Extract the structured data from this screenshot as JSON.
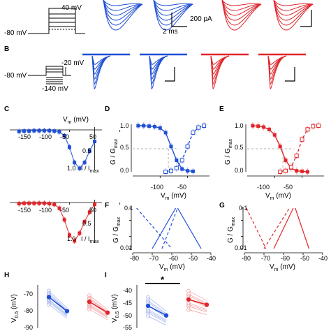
{
  "panel_labels": [
    "B",
    "C",
    "D",
    "E",
    "F",
    "G",
    "H",
    "I"
  ],
  "protocol_a": {
    "v_hold": "-80 mV",
    "v_step": "40 mV"
  },
  "protocol_b": {
    "v_hold": "-80 mV",
    "v_test": "-20 mV",
    "v_pre": "-140 mV"
  },
  "scalebar_a": {
    "current": "200 pA",
    "time": "2 ms"
  },
  "colors": {
    "control": "#1f4fd6",
    "treatment": "#e0262b",
    "light_control": "#a9b8f0",
    "light_treatment": "#f3a9a9"
  },
  "axes": {
    "iv_x_ticks": [
      "-150",
      "-100",
      "-50",
      "50"
    ],
    "iv_x_label": "V",
    "iv_x_label_sub": "m",
    "iv_x_label_unit": " (mV)",
    "iv_y_label": "I / I",
    "iv_y_label_sub": "max",
    "iv_y_ticks": [
      "0.5",
      "1.0"
    ],
    "g_y_label": "G / G",
    "g_y_label_sub": "max",
    "g_y_ticks": [
      "1.0",
      "0.5",
      "0.0"
    ],
    "g_x_ticks": [
      "-100",
      "-50"
    ],
    "log_y_ticks": [
      "0.1",
      "0.01"
    ],
    "log_x_ticks": [
      "-80",
      "-70",
      "-60",
      "-50",
      "-40"
    ],
    "vm_label": "V",
    "vm_label_sub": "m",
    "vm_label_unit": " (mV)",
    "v05_label": "V",
    "v05_label_sub": "0.5",
    "v05_label_unit": " (mV)",
    "h_y_ticks": [
      "-70",
      "-80",
      "-90"
    ],
    "i_y_ticks": [
      "-40",
      "-45",
      "-50",
      "-55"
    ],
    "significance": "*"
  },
  "chart_data": [
    {
      "type": "scatter",
      "panel": "C-top",
      "xlabel": "Vm (mV)",
      "ylabel": "I / Imax",
      "series": [
        {
          "color": "#1f4fd6",
          "x": [
            -150,
            -140,
            -130,
            -120,
            -110,
            -100,
            -90,
            -80,
            -70,
            -60,
            -50,
            -40,
            -30,
            -20,
            -10,
            0
          ],
          "y": [
            -0.04,
            -0.03,
            -0.03,
            -0.02,
            -0.02,
            -0.02,
            -0.02,
            -0.03,
            -0.05,
            -0.15,
            -0.45,
            -0.85,
            -1.0,
            -0.85,
            -0.55,
            -0.3
          ]
        }
      ]
    },
    {
      "type": "scatter",
      "panel": "C-bottom",
      "xlabel": "",
      "ylabel": "I / Imax",
      "series": [
        {
          "color": "#e0262b",
          "x": [
            -150,
            -140,
            -130,
            -120,
            -110,
            -100,
            -90,
            -80,
            -70,
            -60,
            -50,
            -40,
            -30,
            -20,
            -10,
            0
          ],
          "y": [
            -0.03,
            -0.02,
            -0.02,
            -0.02,
            -0.02,
            -0.02,
            -0.03,
            -0.05,
            -0.15,
            -0.45,
            -0.85,
            -1.0,
            -0.8,
            -0.5,
            -0.25,
            -0.05
          ]
        }
      ]
    },
    {
      "type": "line",
      "panel": "D",
      "xlabel": "Vm (mV)",
      "ylabel": "G / Gmax",
      "ylim": [
        0,
        1
      ],
      "series": [
        {
          "style": "solid",
          "color": "#1f4fd6",
          "x": [
            -140,
            -130,
            -120,
            -110,
            -100,
            -90,
            -80,
            -70,
            -60,
            -50,
            -40
          ],
          "y": [
            1.0,
            1.0,
            0.99,
            0.98,
            0.95,
            0.85,
            0.55,
            0.25,
            0.06,
            0.02,
            0.01
          ]
        },
        {
          "style": "dashed",
          "color": "#1f4fd6",
          "x": [
            -90,
            -80,
            -70,
            -60,
            -50,
            -40,
            -30,
            -20
          ],
          "y": [
            0.0,
            0.02,
            0.08,
            0.25,
            0.55,
            0.85,
            0.96,
            1.0
          ]
        }
      ]
    },
    {
      "type": "line",
      "panel": "E",
      "xlabel": "Vm (mV)",
      "ylabel": "G / Gmax",
      "ylim": [
        0,
        1
      ],
      "series": [
        {
          "style": "solid",
          "color": "#e0262b",
          "x": [
            -140,
            -130,
            -120,
            -110,
            -100,
            -90,
            -80,
            -70,
            -60,
            -50,
            -40
          ],
          "y": [
            1.0,
            0.99,
            0.97,
            0.92,
            0.8,
            0.55,
            0.25,
            0.08,
            0.02,
            0.01,
            0.0
          ]
        },
        {
          "style": "dashed",
          "color": "#e0262b",
          "x": [
            -90,
            -80,
            -70,
            -60,
            -50,
            -40,
            -30,
            -20
          ],
          "y": [
            0.0,
            0.02,
            0.1,
            0.35,
            0.7,
            0.92,
            0.99,
            1.0
          ]
        }
      ]
    },
    {
      "type": "line",
      "panel": "F",
      "xlabel": "Vm (mV)",
      "ylabel": "G / Gmax",
      "xlim": [
        -80,
        -40
      ],
      "series": [
        {
          "style": "dashed",
          "color": "#1f4fd6",
          "x": [
            -78,
            -60
          ],
          "y": [
            0.1,
            0.01
          ]
        },
        {
          "style": "dashed",
          "color": "#1f4fd6",
          "x": [
            -65,
            -57
          ],
          "y": [
            0.01,
            0.1
          ]
        },
        {
          "style": "solid",
          "color": "#1f4fd6",
          "x": [
            -70,
            -58
          ],
          "y": [
            0.01,
            0.1
          ]
        },
        {
          "style": "solid",
          "color": "#1f4fd6",
          "x": [
            -57,
            -45
          ],
          "y": [
            0.1,
            0.01
          ]
        }
      ]
    },
    {
      "type": "line",
      "panel": "G",
      "xlabel": "Vm (mV)",
      "ylabel": "G / Gmax",
      "xlim": [
        -80,
        -40
      ],
      "series": [
        {
          "style": "dashed",
          "color": "#e0262b",
          "x": [
            -79,
            -69
          ],
          "y": [
            0.1,
            0.01
          ]
        },
        {
          "style": "dashed",
          "color": "#e0262b",
          "x": [
            -70,
            -57
          ],
          "y": [
            0.01,
            0.1
          ]
        },
        {
          "style": "solid",
          "color": "#e0262b",
          "x": [
            -65,
            -55
          ],
          "y": [
            0.01,
            0.1
          ]
        },
        {
          "style": "solid",
          "color": "#e0262b",
          "x": [
            -54,
            -47
          ],
          "y": [
            0.1,
            0.01
          ]
        }
      ]
    },
    {
      "type": "scatter",
      "panel": "H",
      "ylabel": "V0.5 (mV)",
      "series": [
        {
          "color": "#1f4fd6",
          "x": [
            0,
            1
          ],
          "y": [
            -72,
            -81
          ]
        },
        {
          "color": "#e0262b",
          "x": [
            2,
            3
          ],
          "y": [
            -75,
            -82
          ]
        }
      ]
    },
    {
      "type": "scatter",
      "panel": "I",
      "ylabel": "V0.5 (mV)",
      "series": [
        {
          "color": "#1f4fd6",
          "x": [
            0,
            1
          ],
          "y": [
            -46.5,
            -51
          ]
        },
        {
          "color": "#e0262b",
          "x": [
            2,
            3
          ],
          "y": [
            -43.5,
            -46
          ]
        }
      ]
    }
  ]
}
